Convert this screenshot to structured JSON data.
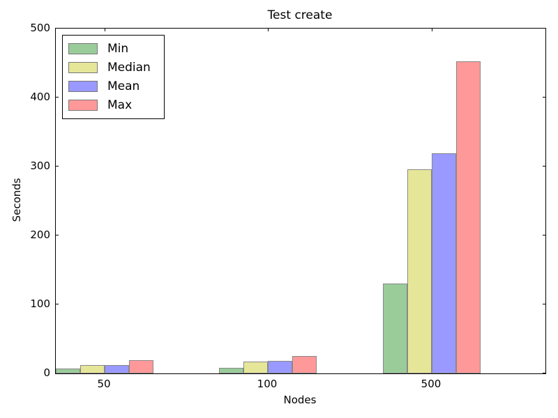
{
  "figure": {
    "title": "Test create",
    "xlabel": "Nodes",
    "ylabel": "Seconds"
  },
  "chart_data": {
    "type": "bar",
    "title": "Test create",
    "xlabel": "Nodes",
    "ylabel": "Seconds",
    "categories": [
      "50",
      "100",
      "500"
    ],
    "series": [
      {
        "name": "Min",
        "color": "#99cc99",
        "values": [
          7,
          8,
          130
        ]
      },
      {
        "name": "Median",
        "color": "#e6e699",
        "values": [
          12,
          17,
          296
        ]
      },
      {
        "name": "Mean",
        "color": "#9999ff",
        "values": [
          12,
          18,
          319
        ]
      },
      {
        "name": "Max",
        "color": "#ff9999",
        "values": [
          19,
          25,
          453
        ]
      }
    ],
    "ylim": [
      0,
      500
    ],
    "yticks": [
      0,
      100,
      200,
      300,
      400,
      500
    ],
    "xtick_labels": [
      "50",
      "100",
      "500"
    ],
    "grid": false,
    "legend_position": "upper left",
    "bar_edge_color": "#888888",
    "legend_swatch_edge_color": "#777777",
    "axis_color": "#000000",
    "background_color": "#ffffff"
  }
}
